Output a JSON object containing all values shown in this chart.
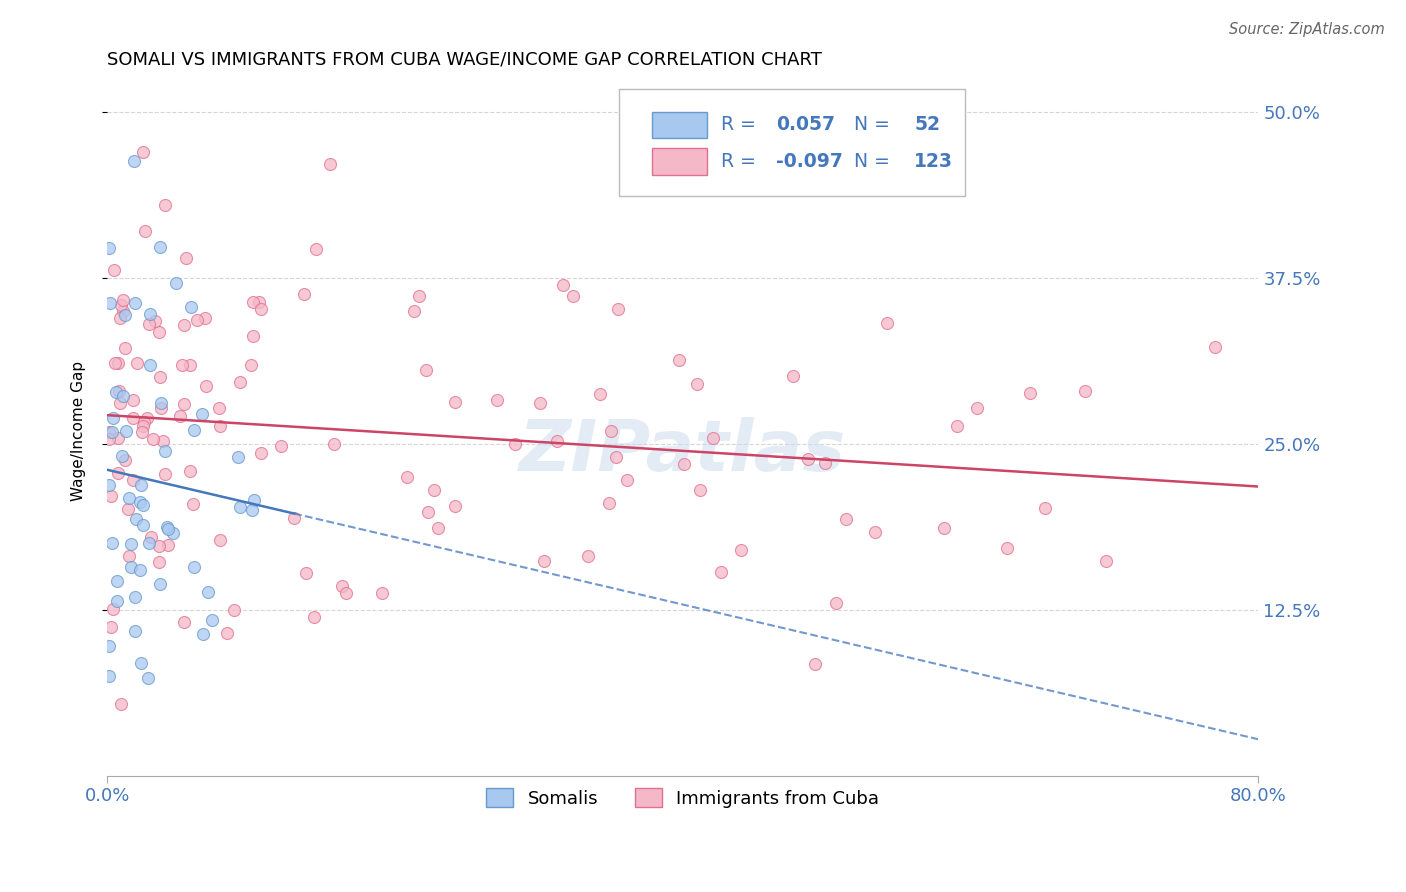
{
  "title": "SOMALI VS IMMIGRANTS FROM CUBA WAGE/INCOME GAP CORRELATION CHART",
  "source": "Source: ZipAtlas.com",
  "ylabel": "Wage/Income Gap",
  "yticks": [
    "50.0%",
    "37.5%",
    "25.0%",
    "12.5%"
  ],
  "ytick_vals": [
    0.5,
    0.375,
    0.25,
    0.125
  ],
  "legend_label1": "Somalis",
  "legend_label2": "Immigrants from Cuba",
  "R1": 0.057,
  "N1": 52,
  "R2": -0.097,
  "N2": 123,
  "color_somali_fill": "#A8C8F0",
  "color_somali_edge": "#6699CC",
  "color_cuba_fill": "#F5B8C8",
  "color_cuba_edge": "#E07090",
  "color_line_somali": "#4477BB",
  "color_line_cuba": "#CC4466",
  "color_legend_text": "#4477BB",
  "watermark": "ZIPatlas",
  "xlim": [
    0.0,
    0.8
  ],
  "ylim": [
    0.0,
    0.52
  ],
  "grid_color": "#CCCCCC"
}
